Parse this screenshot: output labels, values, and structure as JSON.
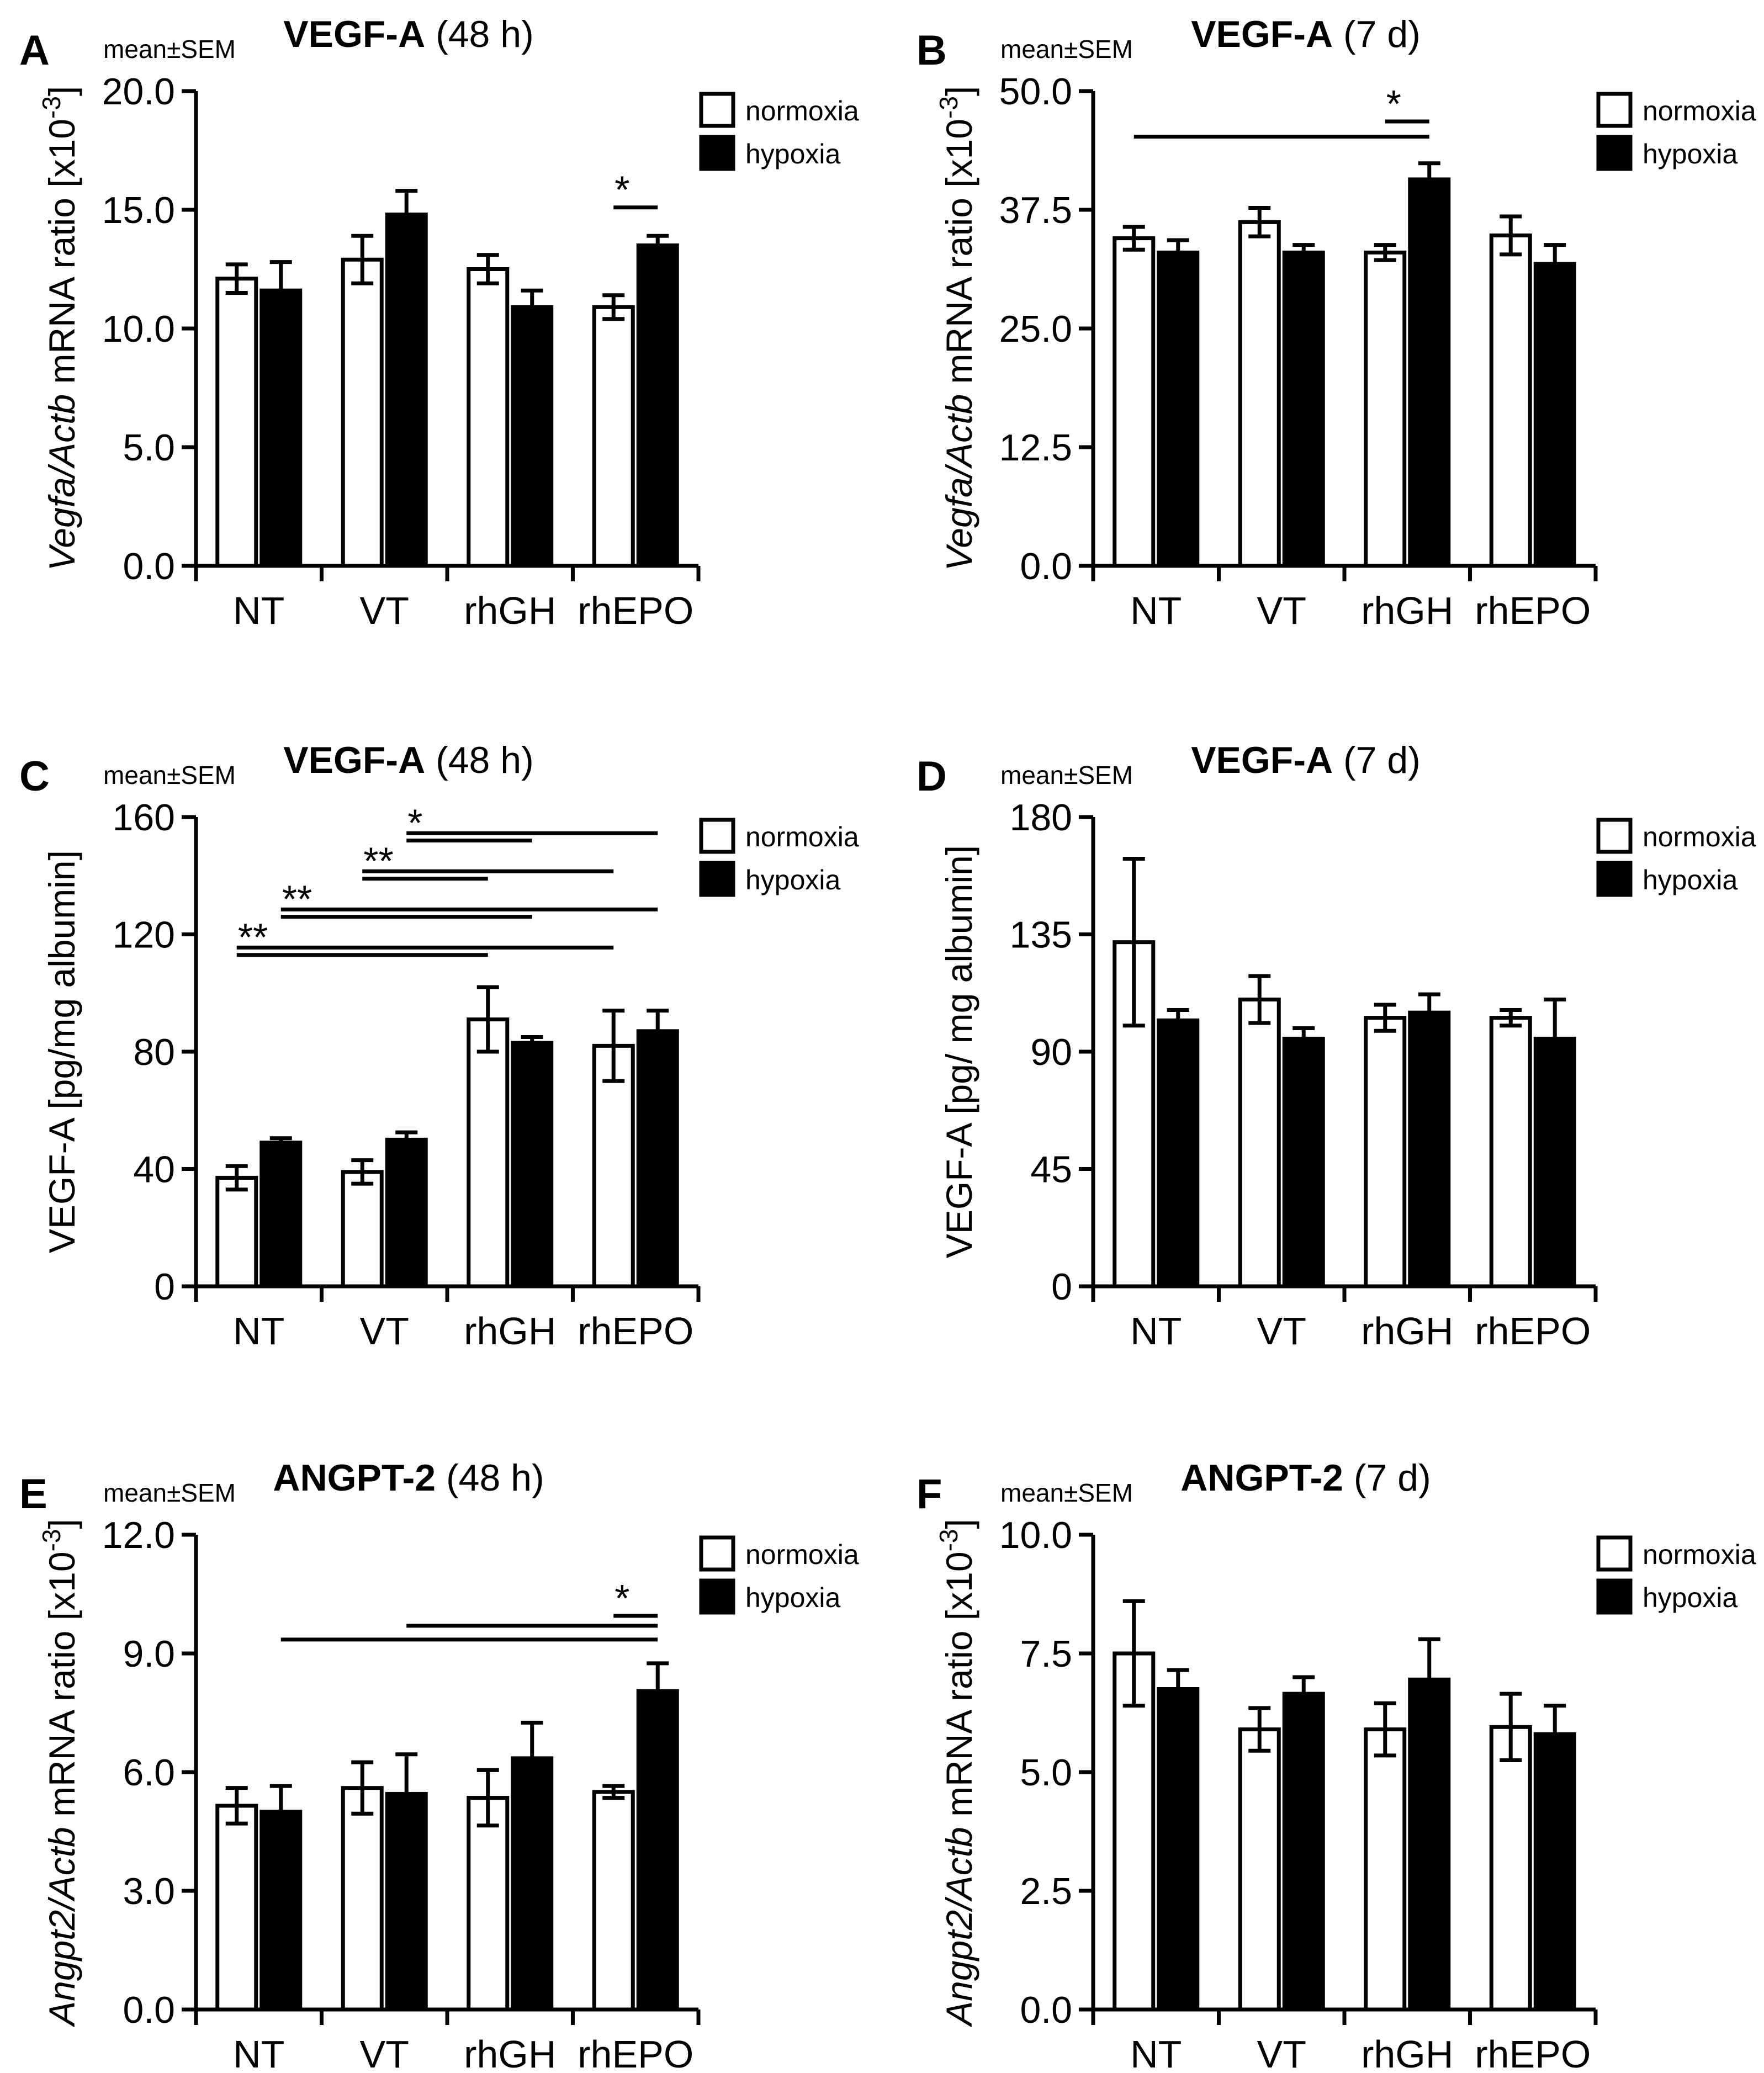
{
  "figure": {
    "legend_labels": {
      "normoxia": "normoxia",
      "hypoxia": "hypoxia"
    },
    "colors": {
      "normoxia": "#ffffff",
      "hypoxia": "#000000",
      "stroke": "#000000"
    }
  },
  "chart_data": [
    {
      "id": "A",
      "panel_letter": "A",
      "type": "bar",
      "title_bold": "VEGF-A",
      "title_rest": " (48 h)",
      "stat_label": "mean±SEM",
      "ylabel_italic": "Vegfa/Actb",
      "ylabel_rest": " mRNA ratio [x10",
      "ylabel_sup": "-3",
      "ylabel_end": "]",
      "categories": [
        "NT",
        "VT",
        "rhGH",
        "rhEPO"
      ],
      "yticks": [
        "0.0",
        "5.0",
        "10.0",
        "15.0",
        "20.0"
      ],
      "ylim": [
        0,
        20
      ],
      "series": [
        {
          "name": "normoxia",
          "values": [
            12.1,
            12.9,
            12.5,
            10.9
          ],
          "err": [
            0.6,
            1.0,
            0.6,
            0.5
          ]
        },
        {
          "name": "hypoxia",
          "values": [
            11.6,
            14.8,
            10.9,
            13.5
          ],
          "err": [
            1.2,
            1.0,
            0.7,
            0.4
          ]
        }
      ],
      "significance": [
        {
          "from": [
            3,
            0
          ],
          "to": [
            3,
            1
          ],
          "stars": "*",
          "level": 15.1
        }
      ]
    },
    {
      "id": "B",
      "panel_letter": "B",
      "type": "bar",
      "title_bold": "VEGF-A",
      "title_rest": " (7 d)",
      "stat_label": "mean±SEM",
      "ylabel_italic": "Vegfa/Actb",
      "ylabel_rest": " mRNA ratio [x10",
      "ylabel_sup": "-3",
      "ylabel_end": "]",
      "categories": [
        "NT",
        "VT",
        "rhGH",
        "rhEPO"
      ],
      "yticks": [
        "0.0",
        "12.5",
        "25.0",
        "37.5",
        "50.0"
      ],
      "ylim": [
        0,
        50
      ],
      "series": [
        {
          "name": "normoxia",
          "values": [
            34.5,
            36.2,
            33.0,
            34.8
          ],
          "err": [
            1.2,
            1.5,
            0.8,
            2.0
          ]
        },
        {
          "name": "hypoxia",
          "values": [
            33.0,
            33.0,
            40.7,
            31.8
          ],
          "err": [
            1.3,
            0.8,
            1.7,
            2.0
          ]
        }
      ],
      "significance": [
        {
          "from": [
            0,
            0
          ],
          "to": [
            2,
            1
          ],
          "stars": "",
          "level": 45.2
        },
        {
          "from": [
            2,
            0
          ],
          "to": [
            2,
            1
          ],
          "stars": "*",
          "level": 46.8
        }
      ]
    },
    {
      "id": "C",
      "panel_letter": "C",
      "type": "bar",
      "title_bold": "VEGF-A",
      "title_rest": " (48 h)",
      "stat_label": "mean±SEM",
      "ylabel_italic": "",
      "ylabel_rest": "VEGF-A [pg/mg albumin]",
      "ylabel_sup": "",
      "ylabel_end": "",
      "categories": [
        "NT",
        "VT",
        "rhGH",
        "rhEPO"
      ],
      "yticks": [
        "0",
        "40",
        "80",
        "120",
        "160"
      ],
      "ylim": [
        0,
        160
      ],
      "series": [
        {
          "name": "normoxia",
          "values": [
            37,
            39,
            91,
            82
          ],
          "err": [
            4,
            4,
            11,
            12
          ]
        },
        {
          "name": "hypoxia",
          "values": [
            49,
            50,
            83,
            87
          ],
          "err": [
            1.5,
            2.5,
            2,
            7
          ]
        }
      ],
      "significance": [
        {
          "from": [
            0,
            0
          ],
          "to": [
            2,
            0
          ],
          "stars": "**",
          "level": 113
        },
        {
          "from": [
            0,
            0
          ],
          "to": [
            3,
            0
          ],
          "stars": "",
          "level": 115.5
        },
        {
          "from": [
            0,
            1
          ],
          "to": [
            2,
            1
          ],
          "stars": "**",
          "level": 126
        },
        {
          "from": [
            0,
            1
          ],
          "to": [
            3,
            1
          ],
          "stars": "",
          "level": 128.5
        },
        {
          "from": [
            1,
            0
          ],
          "to": [
            2,
            0
          ],
          "stars": "**",
          "level": 139
        },
        {
          "from": [
            1,
            0
          ],
          "to": [
            3,
            0
          ],
          "stars": "",
          "level": 141.5
        },
        {
          "from": [
            1,
            1
          ],
          "to": [
            2,
            1
          ],
          "stars": "*",
          "level": 152
        },
        {
          "from": [
            1,
            1
          ],
          "to": [
            3,
            1
          ],
          "stars": "",
          "level": 154.5
        }
      ]
    },
    {
      "id": "D",
      "panel_letter": "D",
      "type": "bar",
      "title_bold": "VEGF-A",
      "title_rest": " (7 d)",
      "stat_label": "mean±SEM",
      "ylabel_italic": "",
      "ylabel_rest": "VEGF-A [pg/ mg albumin]",
      "ylabel_sup": "",
      "ylabel_end": "",
      "categories": [
        "NT",
        "VT",
        "rhGH",
        "rhEPO"
      ],
      "yticks": [
        "0",
        "45",
        "90",
        "135",
        "180"
      ],
      "ylim": [
        0,
        180
      ],
      "series": [
        {
          "name": "normoxia",
          "values": [
            132,
            110,
            103,
            103
          ],
          "err": [
            32,
            9,
            5,
            3
          ]
        },
        {
          "name": "hypoxia",
          "values": [
            102,
            95,
            105,
            95
          ],
          "err": [
            4,
            4,
            7,
            15
          ]
        }
      ],
      "significance": []
    },
    {
      "id": "E",
      "panel_letter": "E",
      "type": "bar",
      "title_bold": "ANGPT-2",
      "title_rest": " (48 h)",
      "stat_label": "mean±SEM",
      "ylabel_italic": "Angpt2/Actb",
      "ylabel_rest": " mRNA ratio [x10",
      "ylabel_sup": "-3",
      "ylabel_end": "]",
      "categories": [
        "NT",
        "VT",
        "rhGH",
        "rhEPO"
      ],
      "yticks": [
        "0.0",
        "3.0",
        "6.0",
        "9.0",
        "12.0"
      ],
      "ylim": [
        0,
        12
      ],
      "series": [
        {
          "name": "normoxia",
          "values": [
            5.15,
            5.6,
            5.35,
            5.5
          ],
          "err": [
            0.45,
            0.65,
            0.7,
            0.15
          ]
        },
        {
          "name": "hypoxia",
          "values": [
            5.0,
            5.45,
            6.35,
            8.05
          ],
          "err": [
            0.65,
            1.0,
            0.9,
            0.7
          ]
        }
      ],
      "significance": [
        {
          "from": [
            0,
            1
          ],
          "to": [
            3,
            1
          ],
          "stars": "",
          "level": 9.35
        },
        {
          "from": [
            1,
            1
          ],
          "to": [
            3,
            1
          ],
          "stars": "",
          "level": 9.7
        },
        {
          "from": [
            3,
            0
          ],
          "to": [
            3,
            1
          ],
          "stars": "*",
          "level": 9.95
        }
      ]
    },
    {
      "id": "F",
      "panel_letter": "F",
      "type": "bar",
      "title_bold": "ANGPT-2",
      "title_rest": " (7 d)",
      "stat_label": "mean±SEM",
      "ylabel_italic": "Angpt2/Actb",
      "ylabel_rest": " mRNA ratio [x10",
      "ylabel_sup": "-3",
      "ylabel_end": "]",
      "categories": [
        "NT",
        "VT",
        "rhGH",
        "rhEPO"
      ],
      "yticks": [
        "0.0",
        "2.5",
        "5.0",
        "7.5",
        "10.0"
      ],
      "ylim": [
        0,
        10
      ],
      "series": [
        {
          "name": "normoxia",
          "values": [
            7.5,
            5.9,
            5.9,
            5.95
          ],
          "err": [
            1.1,
            0.45,
            0.55,
            0.7
          ]
        },
        {
          "name": "hypoxia",
          "values": [
            6.75,
            6.65,
            6.95,
            5.8
          ],
          "err": [
            0.4,
            0.35,
            0.85,
            0.6
          ]
        }
      ],
      "significance": []
    }
  ]
}
